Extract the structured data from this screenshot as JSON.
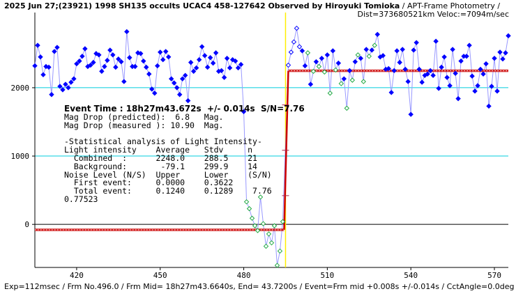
{
  "header": {
    "title_bold": "2025 Jun 27;(23921) 1998 SH135 occults UCAC4 458-127642 Observed by Hiroyuki Tomioka",
    "title_rest": " / APT-Frame Photometry /",
    "title_line2": "Dist=373680521km Veloc:=7094m/sec"
  },
  "footer": {
    "text": "Exp=112msec / Frm No.496.0 / Frm Mid= 18h27m43.6640s, End= 43.7200s / Event=Frm mid +0.008s +/-0.014s / CctAngle=0.0deg"
  },
  "stats": {
    "event_time": "Event Time : 18h27m43.672s  +/- 0.014s  S/N=7.76",
    "lines": [
      "Mag Drop (predicted):  6.8   Mag.",
      "Mag Drop (measured ): 10.90  Mag.",
      "",
      "-Statistical analysis of Light Intensity-",
      "Light intensity    Average   Stdv     n",
      "  Combined  :      2248.0    288.5    21",
      "  Background:       -79.1    299.9    14",
      "Noise Level (N/S)  Upper     Lower    (S/N)",
      "  First event:     0.0000    0.3622",
      "  Total event:     0.1240    0.1289    7.76",
      "0.77523"
    ]
  },
  "chart_data": {
    "type": "scatter",
    "xlim": [
      405,
      575
    ],
    "ylim": [
      -630,
      3100
    ],
    "x_ticks": [
      420,
      450,
      480,
      510,
      540,
      570
    ],
    "y_ticks": [
      0,
      1000,
      2000
    ],
    "reference_lines": [
      0,
      1000,
      2000
    ],
    "event_x": 495.0,
    "upper_level": 2248.0,
    "lower_level": -79.1,
    "colors": {
      "series": "#0000ff",
      "line": "#9999ff",
      "event_points": "#22aa44",
      "level": "#cc0000",
      "reference": "#00ccdd",
      "event_marker": "#ffee00"
    },
    "series_before": [
      [
        405,
        2320
      ],
      [
        406,
        2620
      ],
      [
        407,
        2450
      ],
      [
        408,
        2190
      ],
      [
        409,
        2310
      ],
      [
        410,
        2300
      ],
      [
        411,
        1900
      ],
      [
        412,
        2530
      ],
      [
        413,
        2590
      ],
      [
        414,
        2020
      ],
      [
        415,
        1970
      ],
      [
        416,
        2050
      ],
      [
        417,
        2000
      ],
      [
        418,
        2080
      ],
      [
        419,
        2130
      ],
      [
        420,
        2350
      ],
      [
        421,
        2390
      ],
      [
        422,
        2460
      ],
      [
        423,
        2570
      ],
      [
        424,
        2310
      ],
      [
        425,
        2330
      ],
      [
        426,
        2370
      ],
      [
        427,
        2500
      ],
      [
        428,
        2480
      ],
      [
        429,
        2240
      ],
      [
        430,
        2310
      ],
      [
        431,
        2400
      ],
      [
        432,
        2550
      ],
      [
        433,
        2480
      ],
      [
        434,
        2300
      ],
      [
        435,
        2420
      ],
      [
        436,
        2380
      ],
      [
        437,
        2090
      ],
      [
        438,
        2820
      ],
      [
        439,
        2440
      ],
      [
        440,
        2310
      ],
      [
        441,
        2310
      ],
      [
        442,
        2510
      ],
      [
        443,
        2500
      ],
      [
        444,
        2390
      ],
      [
        445,
        2300
      ],
      [
        446,
        2200
      ],
      [
        447,
        1980
      ],
      [
        448,
        1920
      ],
      [
        449,
        2320
      ],
      [
        450,
        2520
      ],
      [
        451,
        2410
      ],
      [
        452,
        2530
      ],
      [
        453,
        2450
      ],
      [
        454,
        2130
      ],
      [
        455,
        2070
      ],
      [
        456,
        2000
      ],
      [
        457,
        1900
      ],
      [
        458,
        2130
      ],
      [
        459,
        2180
      ],
      [
        460,
        1810
      ],
      [
        461,
        2370
      ],
      [
        462,
        2240
      ],
      [
        463,
        2290
      ],
      [
        464,
        2410
      ],
      [
        465,
        2600
      ],
      [
        466,
        2470
      ],
      [
        467,
        2300
      ],
      [
        468,
        2440
      ],
      [
        469,
        2360
      ],
      [
        470,
        2510
      ],
      [
        471,
        2240
      ],
      [
        472,
        2250
      ],
      [
        473,
        2150
      ],
      [
        474,
        2430
      ],
      [
        475,
        2290
      ],
      [
        476,
        2410
      ],
      [
        477,
        2390
      ],
      [
        478,
        2290
      ],
      [
        479,
        2340
      ],
      [
        480,
        1650
      ]
    ],
    "series_event": [
      [
        481,
        330
      ],
      [
        482,
        230
      ],
      [
        483,
        90
      ],
      [
        484,
        -20
      ],
      [
        485,
        -90
      ],
      [
        486,
        400
      ],
      [
        487,
        10
      ],
      [
        488,
        -320
      ],
      [
        489,
        -140
      ],
      [
        490,
        -270
      ],
      [
        491,
        -20
      ],
      [
        492,
        -600
      ],
      [
        493,
        -390
      ],
      [
        494,
        40
      ]
    ],
    "series_after": [
      [
        496,
        2330
      ],
      [
        497,
        2520
      ],
      [
        498,
        2670
      ],
      [
        499,
        2870
      ],
      [
        500,
        2600
      ],
      [
        501,
        2540
      ],
      [
        502,
        2320
      ],
      [
        503,
        2510
      ],
      [
        504,
        2050
      ],
      [
        505,
        2240
      ],
      [
        506,
        2380
      ],
      [
        507,
        2310
      ],
      [
        508,
        2430
      ],
      [
        509,
        2230
      ],
      [
        510,
        2480
      ],
      [
        511,
        1920
      ],
      [
        512,
        2540
      ],
      [
        513,
        2260
      ],
      [
        514,
        2360
      ],
      [
        515,
        2060
      ],
      [
        516,
        2130
      ],
      [
        517,
        1700
      ],
      [
        518,
        2250
      ],
      [
        519,
        2110
      ],
      [
        520,
        2380
      ],
      [
        521,
        2480
      ],
      [
        522,
        2430
      ],
      [
        523,
        2090
      ],
      [
        524,
        2560
      ],
      [
        525,
        2460
      ],
      [
        526,
        2550
      ],
      [
        527,
        2620
      ],
      [
        528,
        2780
      ],
      [
        529,
        2450
      ],
      [
        530,
        2470
      ],
      [
        531,
        2270
      ],
      [
        532,
        2280
      ],
      [
        533,
        1930
      ],
      [
        534,
        2250
      ],
      [
        535,
        2540
      ],
      [
        536,
        2370
      ],
      [
        537,
        2560
      ],
      [
        538,
        2270
      ],
      [
        539,
        2090
      ],
      [
        540,
        1610
      ],
      [
        541,
        2550
      ],
      [
        542,
        2660
      ],
      [
        543,
        2270
      ],
      [
        544,
        2080
      ],
      [
        545,
        2180
      ],
      [
        546,
        2200
      ],
      [
        547,
        2250
      ],
      [
        548,
        2180
      ],
      [
        549,
        2680
      ],
      [
        550,
        1990
      ],
      [
        551,
        2300
      ],
      [
        552,
        2450
      ],
      [
        553,
        2150
      ],
      [
        554,
        2030
      ],
      [
        555,
        2560
      ],
      [
        556,
        2210
      ],
      [
        557,
        1840
      ],
      [
        558,
        2390
      ],
      [
        559,
        2460
      ],
      [
        560,
        2460
      ],
      [
        561,
        2620
      ],
      [
        562,
        2170
      ],
      [
        563,
        1950
      ],
      [
        564,
        2030
      ],
      [
        565,
        2270
      ],
      [
        566,
        2200
      ],
      [
        567,
        2350
      ],
      [
        568,
        1730
      ],
      [
        569,
        2020
      ],
      [
        570,
        2430
      ],
      [
        571,
        1950
      ],
      [
        572,
        2520
      ],
      [
        573,
        2420
      ],
      [
        574,
        2510
      ],
      [
        575,
        2760
      ]
    ]
  }
}
